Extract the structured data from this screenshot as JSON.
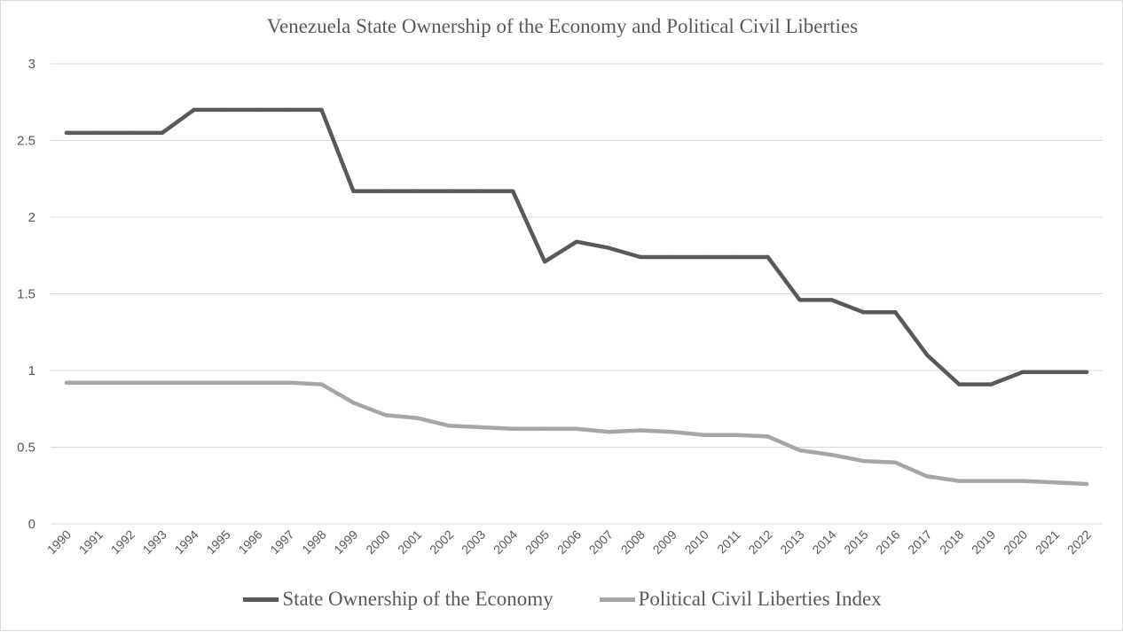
{
  "chart_data": {
    "type": "line",
    "title": "Venezuela State Ownership of the Economy and Political  Civil Liberties",
    "xlabel": "",
    "ylabel": "",
    "ylim": [
      0,
      3
    ],
    "yticks": [
      "0",
      "0.5",
      "1",
      "1.5",
      "2",
      "2.5",
      "3"
    ],
    "grid": true,
    "legend_position": "bottom",
    "x": [
      "1990",
      "1991",
      "1992",
      "1993",
      "1994",
      "1995",
      "1996",
      "1997",
      "1998",
      "1999",
      "2000",
      "2001",
      "2002",
      "2003",
      "2004",
      "2005",
      "2006",
      "2007",
      "2008",
      "2009",
      "2010",
      "2011",
      "2012",
      "2013",
      "2014",
      "2015",
      "2016",
      "2017",
      "2018",
      "2019",
      "2020",
      "2021",
      "2022"
    ],
    "series": [
      {
        "name": "State Ownership of the Economy",
        "color": "#595959",
        "values": [
          2.55,
          2.55,
          2.55,
          2.55,
          2.7,
          2.7,
          2.7,
          2.7,
          2.7,
          2.17,
          2.17,
          2.17,
          2.17,
          2.17,
          2.17,
          1.71,
          1.84,
          1.8,
          1.74,
          1.74,
          1.74,
          1.74,
          1.74,
          1.46,
          1.46,
          1.38,
          1.38,
          1.1,
          0.91,
          0.91,
          0.99,
          0.99,
          0.99
        ]
      },
      {
        "name": "Political Civil Liberties Index",
        "color": "#a6a6a6",
        "values": [
          0.92,
          0.92,
          0.92,
          0.92,
          0.92,
          0.92,
          0.92,
          0.92,
          0.91,
          0.79,
          0.71,
          0.69,
          0.64,
          0.63,
          0.62,
          0.62,
          0.62,
          0.6,
          0.61,
          0.6,
          0.58,
          0.58,
          0.57,
          0.48,
          0.45,
          0.41,
          0.4,
          0.31,
          0.28,
          0.28,
          0.28,
          0.27,
          0.26
        ]
      }
    ]
  }
}
